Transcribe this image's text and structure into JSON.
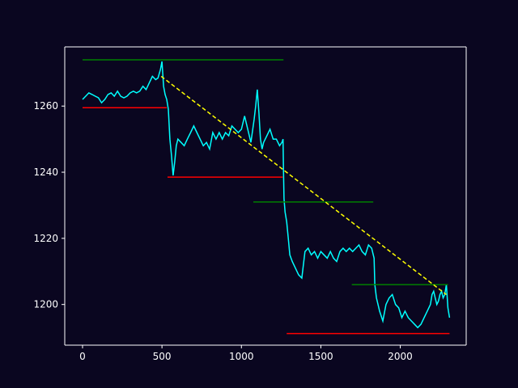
{
  "chart_data": {
    "type": "line",
    "title": "",
    "xlabel": "",
    "ylabel": "",
    "xlim": [
      -112,
      2415
    ],
    "ylim": [
      1187.7,
      1277.9
    ],
    "x_ticks": [
      0,
      500,
      1000,
      1500,
      2000
    ],
    "y_ticks": [
      1200,
      1220,
      1240,
      1260
    ],
    "grid": false,
    "colors": {
      "background": "#0a0620",
      "axes": "#ffffff",
      "price": "#00ffff",
      "support": "#ff0000",
      "resistance": "#008000",
      "trend": "#ffff00"
    },
    "series": [
      {
        "kind": "price",
        "points": [
          [
            0,
            1262
          ],
          [
            20,
            1263
          ],
          [
            40,
            1264
          ],
          [
            60,
            1263.5
          ],
          [
            80,
            1263
          ],
          [
            100,
            1262.5
          ],
          [
            120,
            1261
          ],
          [
            140,
            1262
          ],
          [
            160,
            1263.5
          ],
          [
            180,
            1264
          ],
          [
            200,
            1263
          ],
          [
            220,
            1264.5
          ],
          [
            240,
            1263
          ],
          [
            260,
            1262.5
          ],
          [
            280,
            1263
          ],
          [
            300,
            1264
          ],
          [
            320,
            1264.5
          ],
          [
            340,
            1264
          ],
          [
            360,
            1264.5
          ],
          [
            380,
            1266
          ],
          [
            400,
            1265
          ],
          [
            420,
            1267
          ],
          [
            440,
            1269
          ],
          [
            460,
            1268
          ],
          [
            475,
            1268.5
          ],
          [
            490,
            1271
          ],
          [
            500,
            1273.5
          ],
          [
            510,
            1266
          ],
          [
            520,
            1263.5
          ],
          [
            530,
            1262
          ],
          [
            540,
            1259
          ],
          [
            550,
            1250
          ],
          [
            560,
            1245
          ],
          [
            570,
            1239
          ],
          [
            580,
            1243
          ],
          [
            590,
            1248
          ],
          [
            600,
            1250
          ],
          [
            620,
            1249
          ],
          [
            640,
            1248
          ],
          [
            660,
            1250
          ],
          [
            680,
            1252
          ],
          [
            700,
            1254
          ],
          [
            720,
            1252
          ],
          [
            740,
            1250
          ],
          [
            760,
            1248
          ],
          [
            780,
            1249
          ],
          [
            800,
            1247
          ],
          [
            820,
            1252
          ],
          [
            840,
            1250
          ],
          [
            860,
            1252
          ],
          [
            880,
            1250
          ],
          [
            900,
            1252
          ],
          [
            920,
            1251
          ],
          [
            940,
            1254
          ],
          [
            960,
            1253
          ],
          [
            980,
            1252
          ],
          [
            1000,
            1253
          ],
          [
            1020,
            1257
          ],
          [
            1040,
            1253
          ],
          [
            1060,
            1249
          ],
          [
            1080,
            1256
          ],
          [
            1090,
            1260
          ],
          [
            1100,
            1265
          ],
          [
            1110,
            1258
          ],
          [
            1120,
            1250
          ],
          [
            1130,
            1247
          ],
          [
            1140,
            1249
          ],
          [
            1160,
            1251
          ],
          [
            1180,
            1253
          ],
          [
            1200,
            1250
          ],
          [
            1220,
            1250
          ],
          [
            1240,
            1248
          ],
          [
            1255,
            1249
          ],
          [
            1262,
            1250
          ],
          [
            1265,
            1240
          ],
          [
            1268,
            1232
          ],
          [
            1275,
            1228
          ],
          [
            1285,
            1225
          ],
          [
            1295,
            1220
          ],
          [
            1305,
            1215
          ],
          [
            1320,
            1213
          ],
          [
            1340,
            1211
          ],
          [
            1360,
            1209
          ],
          [
            1380,
            1208
          ],
          [
            1400,
            1216
          ],
          [
            1420,
            1217
          ],
          [
            1440,
            1215
          ],
          [
            1460,
            1216
          ],
          [
            1480,
            1214
          ],
          [
            1500,
            1216
          ],
          [
            1520,
            1215
          ],
          [
            1540,
            1214
          ],
          [
            1560,
            1216
          ],
          [
            1580,
            1214
          ],
          [
            1600,
            1213
          ],
          [
            1620,
            1216
          ],
          [
            1640,
            1217
          ],
          [
            1660,
            1216
          ],
          [
            1680,
            1217
          ],
          [
            1700,
            1216
          ],
          [
            1720,
            1217
          ],
          [
            1740,
            1218
          ],
          [
            1760,
            1216
          ],
          [
            1780,
            1215
          ],
          [
            1800,
            1218
          ],
          [
            1820,
            1217
          ],
          [
            1835,
            1214
          ],
          [
            1840,
            1206
          ],
          [
            1850,
            1202
          ],
          [
            1870,
            1198
          ],
          [
            1890,
            1195
          ],
          [
            1910,
            1200
          ],
          [
            1930,
            1202
          ],
          [
            1950,
            1203
          ],
          [
            1970,
            1200
          ],
          [
            1990,
            1199
          ],
          [
            2010,
            1196
          ],
          [
            2030,
            1198
          ],
          [
            2050,
            1196
          ],
          [
            2070,
            1195
          ],
          [
            2090,
            1194
          ],
          [
            2110,
            1193
          ],
          [
            2130,
            1194
          ],
          [
            2150,
            1196
          ],
          [
            2170,
            1198
          ],
          [
            2190,
            1200
          ],
          [
            2200,
            1203
          ],
          [
            2210,
            1204
          ],
          [
            2220,
            1202
          ],
          [
            2230,
            1200
          ],
          [
            2240,
            1201
          ],
          [
            2250,
            1203
          ],
          [
            2260,
            1204
          ],
          [
            2270,
            1202
          ],
          [
            2280,
            1203
          ],
          [
            2290,
            1206
          ],
          [
            2300,
            1199
          ],
          [
            2310,
            1196
          ]
        ]
      }
    ],
    "support_levels": [
      {
        "x0": 0,
        "x1": 530,
        "y": 1259.5
      },
      {
        "x0": 535,
        "x1": 1260,
        "y": 1238.5
      },
      {
        "x0": 1285,
        "x1": 2310,
        "y": 1191.2
      }
    ],
    "resistance_levels": [
      {
        "x0": 0,
        "x1": 1265,
        "y": 1274
      },
      {
        "x0": 1075,
        "x1": 1830,
        "y": 1231
      },
      {
        "x0": 1695,
        "x1": 2300,
        "y": 1206
      }
    ],
    "trend_lines": [
      {
        "x0": 495,
        "y0": 1269,
        "x1": 2290,
        "y1": 1203
      }
    ]
  }
}
